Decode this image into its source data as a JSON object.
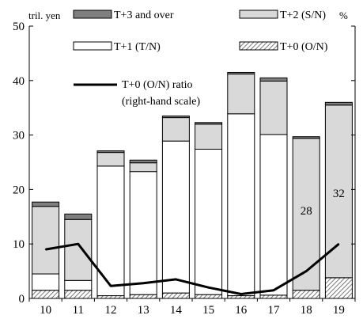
{
  "chart_data": {
    "type": "bar",
    "stacked": true,
    "categories": [
      "10",
      "11",
      "12",
      "13",
      "14",
      "15",
      "16",
      "17",
      "18",
      "19"
    ],
    "y_left_unit": "tril. yen",
    "y_right_unit": "%",
    "ylim": [
      0,
      50
    ],
    "y_ticks": [
      0,
      10,
      20,
      30,
      40,
      50
    ],
    "grid": false,
    "legend_position": "top",
    "series": [
      {
        "name": "T+0 (O/N)",
        "key": "t0",
        "fill": "hatch",
        "values": [
          1.5,
          1.5,
          0.5,
          0.7,
          1.0,
          0.7,
          0.5,
          0.6,
          1.5,
          3.8
        ]
      },
      {
        "name": "T+1 (T/N)",
        "key": "t1",
        "fill": "#ffffff",
        "values": [
          3.0,
          1.8,
          23.8,
          22.6,
          27.9,
          26.7,
          33.4,
          29.5,
          0.0,
          0.0
        ]
      },
      {
        "name": "T+2 (S/N)",
        "key": "t2",
        "fill": "#d9d9d9",
        "values": [
          12.4,
          11.2,
          2.5,
          1.6,
          4.3,
          4.6,
          7.3,
          9.8,
          27.9,
          31.7
        ]
      },
      {
        "name": "T+3 and over",
        "key": "t3",
        "fill": "#7f7f7f",
        "values": [
          0.8,
          1.0,
          0.3,
          0.5,
          0.3,
          0.3,
          0.3,
          0.6,
          0.3,
          0.5
        ]
      }
    ],
    "line_series": {
      "name": "T+0 (O/N) ratio\n(right-hand scale)",
      "legend_lines": [
        "T+0 (O/N) ratio",
        "(right-hand scale)"
      ],
      "color": "#000000",
      "values": [
        9.0,
        10.0,
        2.3,
        2.8,
        3.5,
        2.0,
        0.8,
        1.5,
        5.0,
        10.0
      ]
    },
    "annotations": [
      {
        "text": "28",
        "category": "18"
      },
      {
        "text": "32",
        "category": "19"
      }
    ]
  }
}
